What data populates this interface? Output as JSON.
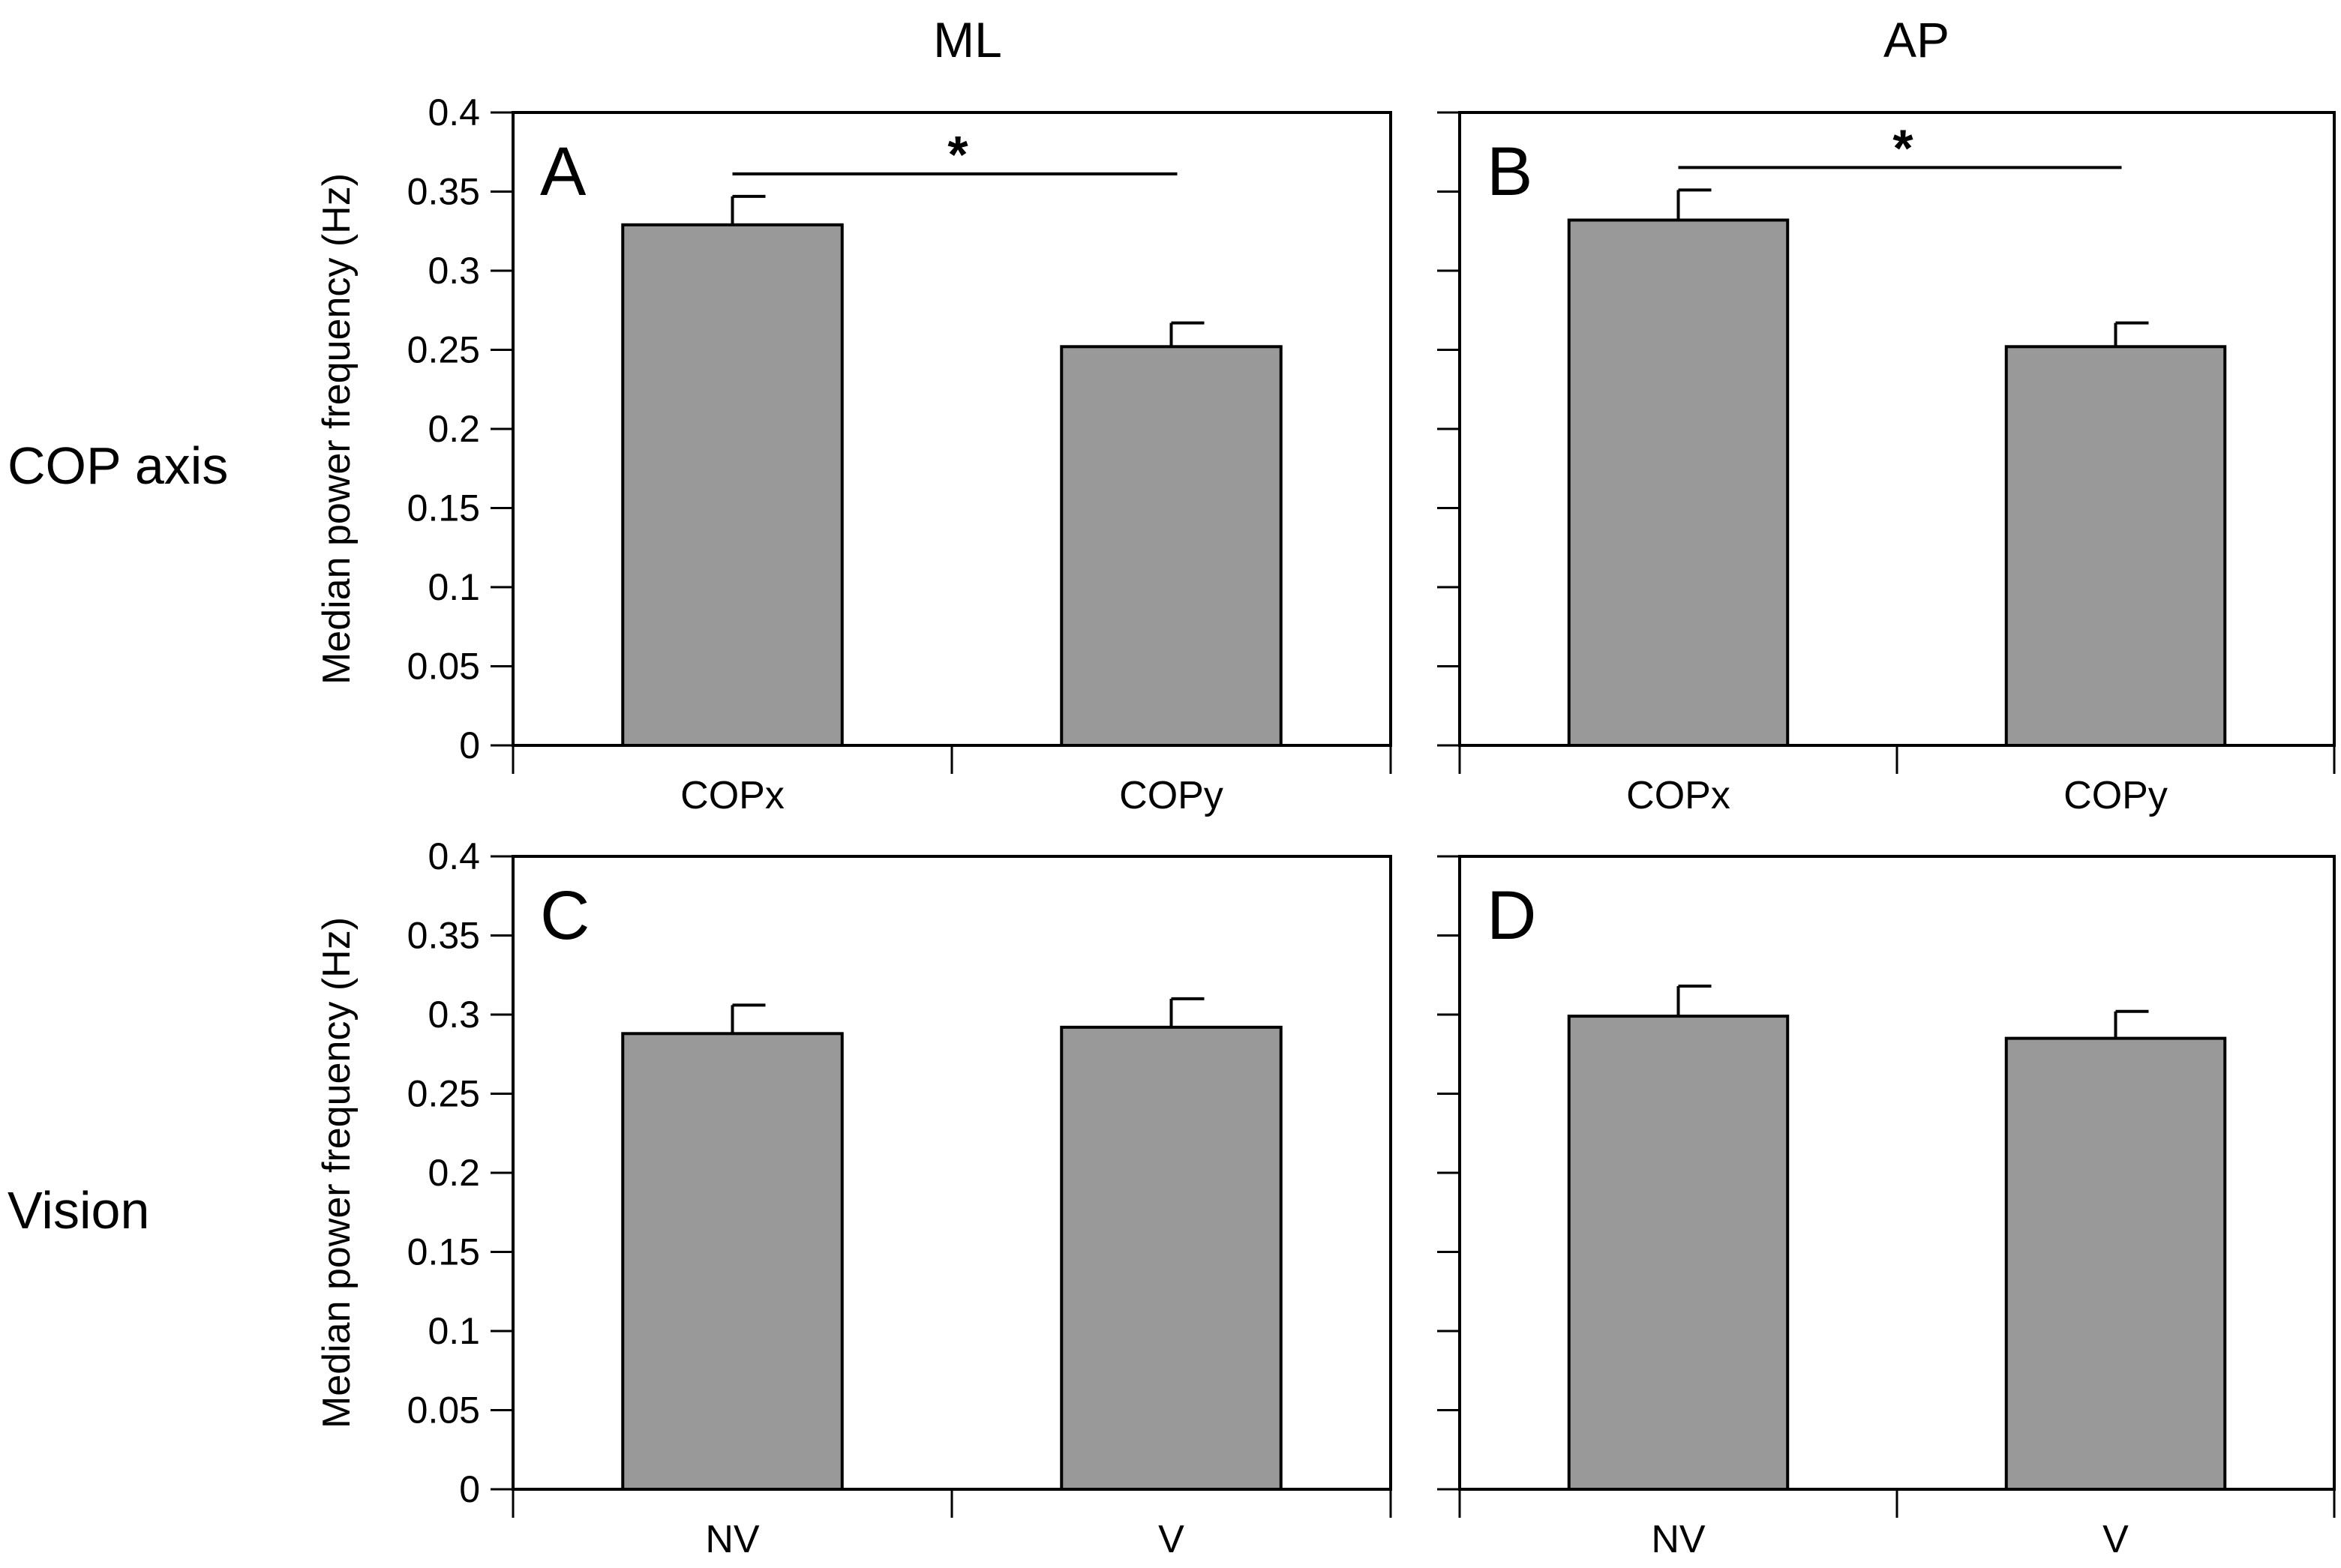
{
  "figure": {
    "column_titles": [
      "ML",
      "AP"
    ],
    "row_titles": [
      "COP axis",
      "Vision"
    ],
    "bar_color": "#999999",
    "axis_color": "#000000"
  },
  "chart_data": [
    {
      "type": "bar",
      "panel": "A",
      "categories": [
        "COPx",
        "COPy"
      ],
      "values": [
        0.329,
        0.252
      ],
      "errors": [
        0.018,
        0.015
      ],
      "title": "",
      "xlabel": "",
      "ylabel": "Median power frequency (Hz)",
      "ylim": [
        0,
        0.4
      ],
      "yticks": [
        "0",
        "0.05",
        "0.1",
        "0.15",
        "0.2",
        "0.25",
        "0.3",
        "0.35",
        "0.4"
      ],
      "significance": {
        "between": [
          "COPx",
          "COPy"
        ],
        "label": "*"
      }
    },
    {
      "type": "bar",
      "panel": "B",
      "categories": [
        "COPx",
        "COPy"
      ],
      "values": [
        0.332,
        0.252
      ],
      "errors": [
        0.019,
        0.015
      ],
      "title": "",
      "xlabel": "",
      "ylabel": "",
      "ylim": [
        0,
        0.4
      ],
      "significance": {
        "between": [
          "COPx",
          "COPy"
        ],
        "label": "*"
      }
    },
    {
      "type": "bar",
      "panel": "C",
      "categories": [
        "NV",
        "V"
      ],
      "values": [
        0.288,
        0.292
      ],
      "errors": [
        0.018,
        0.018
      ],
      "title": "",
      "xlabel": "",
      "ylabel": "Median power frequency (Hz)",
      "ylim": [
        0,
        0.4
      ],
      "yticks": [
        "0",
        "0.05",
        "0.1",
        "0.15",
        "0.2",
        "0.25",
        "0.3",
        "0.35",
        "0.4"
      ]
    },
    {
      "type": "bar",
      "panel": "D",
      "categories": [
        "NV",
        "V"
      ],
      "values": [
        0.299,
        0.285
      ],
      "errors": [
        0.019,
        0.017
      ],
      "title": "",
      "xlabel": "",
      "ylabel": "",
      "ylim": [
        0,
        0.4
      ]
    }
  ]
}
